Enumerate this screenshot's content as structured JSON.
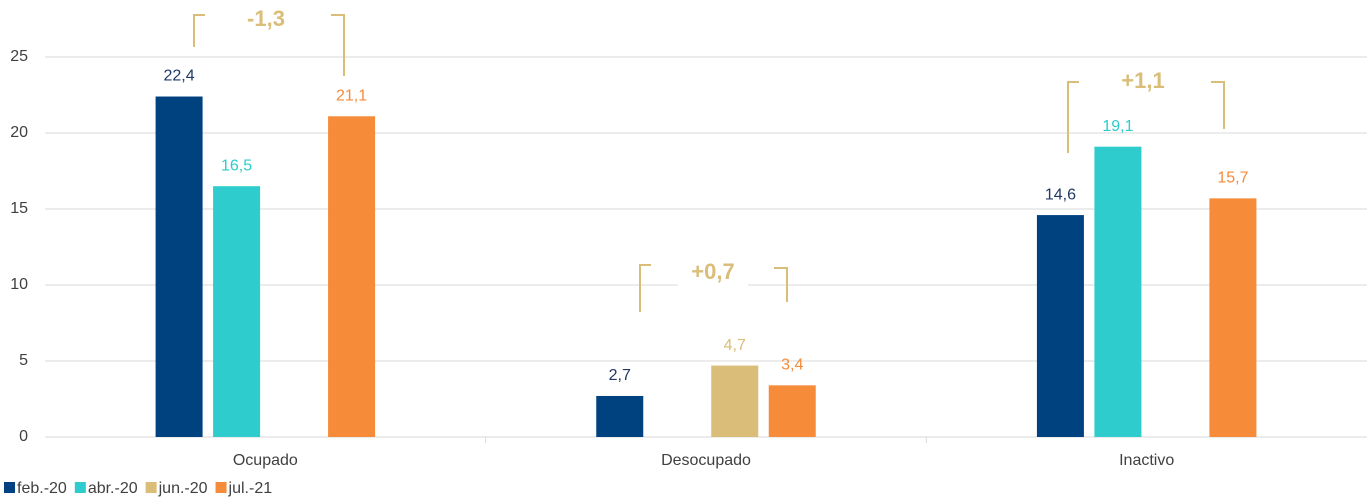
{
  "chart_data": {
    "type": "bar",
    "categories": [
      "Ocupado",
      "Desocupado",
      "Inactivo"
    ],
    "series": [
      {
        "name": "feb.-20",
        "color": "#00427f",
        "label_color": "#1f3864",
        "values": [
          22.4,
          2.7,
          14.6
        ],
        "value_labels": [
          "22,4",
          "2,7",
          "14,6"
        ]
      },
      {
        "name": "abr.-20",
        "color": "#2ecccc",
        "label_color": "#2ecccc",
        "values": [
          16.5,
          null,
          19.1
        ],
        "value_labels": [
          "16,5",
          null,
          "19,1"
        ]
      },
      {
        "name": "jun.-20",
        "color": "#d9bd78",
        "label_color": "#d9bd78",
        "values": [
          null,
          4.7,
          null
        ],
        "value_labels": [
          null,
          "4,7",
          null
        ]
      },
      {
        "name": "jul.-21",
        "color": "#f68b3a",
        "label_color": "#f68b3a",
        "values": [
          21.1,
          3.4,
          15.7
        ],
        "value_labels": [
          "21,1",
          "3,4",
          "15,7"
        ]
      }
    ],
    "annotations": [
      "-1,3",
      "+0,7",
      "+1,1"
    ],
    "annotation_color": "#d9bd78",
    "ylim": [
      0,
      25
    ],
    "yticks": [
      0,
      5,
      10,
      15,
      20,
      25
    ],
    "grid": true,
    "legend": "bottom-left"
  }
}
